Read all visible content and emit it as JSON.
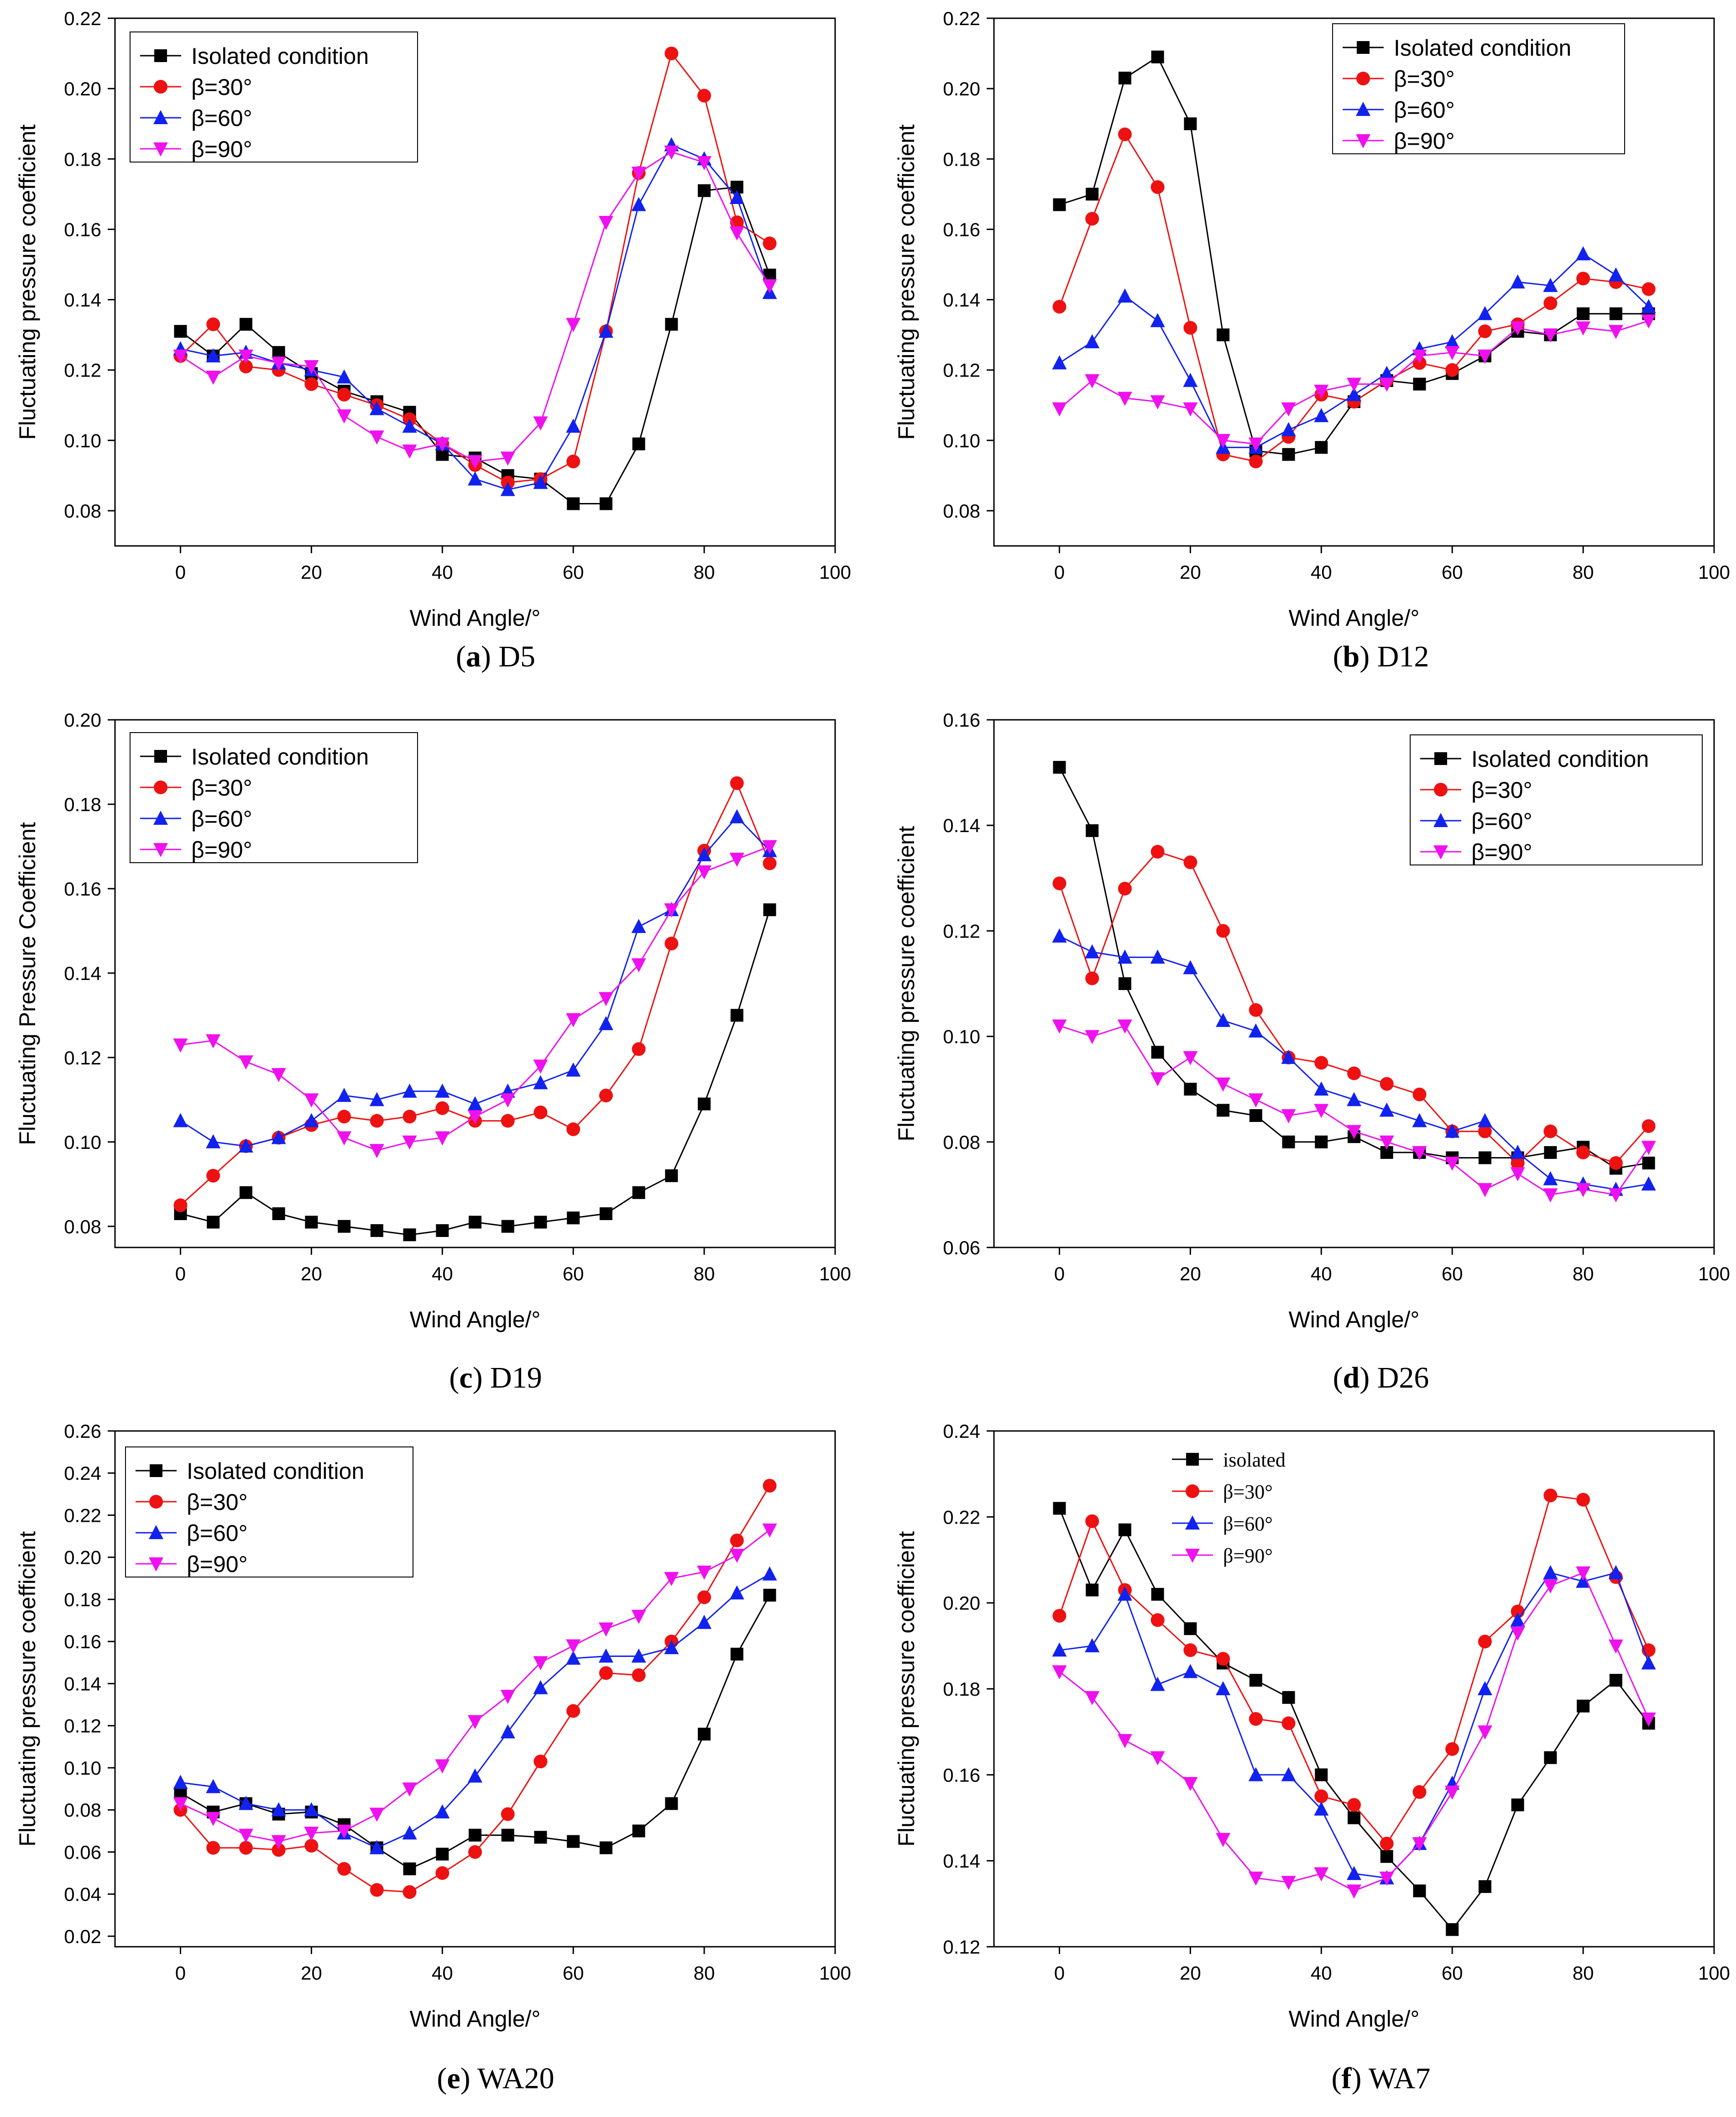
{
  "colors": {
    "isolated": "#000000",
    "b30": "#ee1111",
    "b60": "#1122ee",
    "b90": "#ee11ee"
  },
  "chart_data": [
    {
      "id": "a",
      "type": "line",
      "caption": {
        "letter": "a",
        "rest": ") D5"
      },
      "xlabel": "Wind Angle/°",
      "ylabel": "Fluctuating pressure coefficient",
      "xlim": [
        -10,
        100
      ],
      "xticks": [
        0,
        20,
        40,
        60,
        80,
        100
      ],
      "ylim": [
        0.07,
        0.22
      ],
      "yticks": [
        0.08,
        0.1,
        0.12,
        0.14,
        0.16,
        0.18,
        0.2,
        0.22
      ],
      "ydecimals": 2,
      "legend": "top-left",
      "x": [
        0,
        5,
        10,
        15,
        20,
        25,
        30,
        35,
        40,
        45,
        50,
        55,
        60,
        65,
        70,
        75,
        80,
        85,
        90
      ],
      "series": [
        {
          "name": "Isolated condition",
          "key": "isolated",
          "marker": "square",
          "values": [
            0.131,
            0.124,
            0.133,
            0.125,
            0.119,
            0.114,
            0.111,
            0.108,
            0.096,
            0.095,
            0.09,
            0.089,
            0.082,
            0.082,
            0.099,
            0.133,
            0.171,
            0.172,
            0.147
          ]
        },
        {
          "name": "β=30°",
          "key": "b30",
          "marker": "circle",
          "values": [
            0.124,
            0.133,
            0.121,
            0.12,
            0.116,
            0.113,
            0.11,
            0.106,
            0.099,
            0.093,
            0.088,
            0.089,
            0.094,
            0.131,
            0.176,
            0.21,
            0.198,
            0.162,
            0.156
          ]
        },
        {
          "name": "β=60°",
          "key": "b60",
          "marker": "triangle-up",
          "values": [
            0.126,
            0.124,
            0.125,
            0.122,
            0.12,
            0.118,
            0.109,
            0.104,
            0.099,
            0.089,
            0.086,
            0.088,
            0.104,
            0.131,
            0.167,
            0.184,
            0.18,
            0.169,
            0.142
          ]
        },
        {
          "name": "β=90°",
          "key": "b90",
          "marker": "triangle-down",
          "values": [
            0.124,
            0.118,
            0.124,
            0.122,
            0.121,
            0.107,
            0.101,
            0.097,
            0.099,
            0.094,
            0.095,
            0.105,
            0.133,
            0.162,
            0.176,
            0.182,
            0.179,
            0.159,
            0.144
          ]
        }
      ]
    },
    {
      "id": "b",
      "type": "line",
      "caption": {
        "letter": "b",
        "rest": ") D12"
      },
      "xlabel": "Wind Angle/°",
      "ylabel": "Fluctuating pressure coefficient",
      "xlim": [
        -10,
        100
      ],
      "xticks": [
        0,
        20,
        40,
        60,
        80,
        100
      ],
      "ylim": [
        0.07,
        0.22
      ],
      "yticks": [
        0.08,
        0.1,
        0.12,
        0.14,
        0.16,
        0.18,
        0.2,
        0.22
      ],
      "ydecimals": 2,
      "legend": "top-right",
      "x": [
        0,
        5,
        10,
        15,
        20,
        25,
        30,
        35,
        40,
        45,
        50,
        55,
        60,
        65,
        70,
        75,
        80,
        85,
        90
      ],
      "series": [
        {
          "name": "Isolated condition",
          "key": "isolated",
          "marker": "square",
          "values": [
            0.167,
            0.17,
            0.203,
            0.209,
            0.19,
            0.13,
            0.097,
            0.096,
            0.098,
            0.111,
            0.117,
            0.116,
            0.119,
            0.124,
            0.131,
            0.13,
            0.136,
            0.136,
            0.136
          ]
        },
        {
          "name": "β=30°",
          "key": "b30",
          "marker": "circle",
          "values": [
            0.138,
            0.163,
            0.187,
            0.172,
            0.132,
            0.096,
            0.094,
            0.101,
            0.113,
            0.111,
            0.117,
            0.122,
            0.12,
            0.131,
            0.133,
            0.139,
            0.146,
            0.145,
            0.143
          ]
        },
        {
          "name": "β=60°",
          "key": "b60",
          "marker": "triangle-up",
          "values": [
            0.122,
            0.128,
            0.141,
            0.134,
            0.117,
            0.098,
            0.098,
            0.103,
            0.107,
            0.113,
            0.119,
            0.126,
            0.128,
            0.136,
            0.145,
            0.144,
            0.153,
            0.147,
            0.138
          ]
        },
        {
          "name": "β=90°",
          "key": "b90",
          "marker": "triangle-down",
          "values": [
            0.109,
            0.117,
            0.112,
            0.111,
            0.109,
            0.1,
            0.099,
            0.109,
            0.114,
            0.116,
            0.116,
            0.124,
            0.125,
            0.124,
            0.132,
            0.13,
            0.132,
            0.131,
            0.134
          ]
        }
      ]
    },
    {
      "id": "c",
      "type": "line",
      "caption": {
        "letter": "c",
        "rest": ") D19"
      },
      "xlabel": "Wind Angle/°",
      "ylabel": "Fluctuating Pressure Coefficient",
      "xlim": [
        -10,
        100
      ],
      "xticks": [
        0,
        20,
        40,
        60,
        80,
        100
      ],
      "ylim": [
        0.075,
        0.2
      ],
      "yticks": [
        0.08,
        0.1,
        0.12,
        0.14,
        0.16,
        0.18,
        0.2
      ],
      "ydecimals": 2,
      "legend": "top-left",
      "x": [
        0,
        5,
        10,
        15,
        20,
        25,
        30,
        35,
        40,
        45,
        50,
        55,
        60,
        65,
        70,
        75,
        80,
        85,
        90
      ],
      "series": [
        {
          "name": "Isolated condition",
          "key": "isolated",
          "marker": "square",
          "values": [
            0.083,
            0.081,
            0.088,
            0.083,
            0.081,
            0.08,
            0.079,
            0.078,
            0.079,
            0.081,
            0.08,
            0.081,
            0.082,
            0.083,
            0.088,
            0.092,
            0.109,
            0.13,
            0.155
          ]
        },
        {
          "name": "β=30°",
          "key": "b30",
          "marker": "circle",
          "values": [
            0.085,
            0.092,
            0.099,
            0.101,
            0.104,
            0.106,
            0.105,
            0.106,
            0.108,
            0.105,
            0.105,
            0.107,
            0.103,
            0.111,
            0.122,
            0.147,
            0.169,
            0.185,
            0.166
          ]
        },
        {
          "name": "β=60°",
          "key": "b60",
          "marker": "triangle-up",
          "values": [
            0.105,
            0.1,
            0.099,
            0.101,
            0.105,
            0.111,
            0.11,
            0.112,
            0.112,
            0.109,
            0.112,
            0.114,
            0.117,
            0.128,
            0.151,
            0.155,
            0.168,
            0.177,
            0.169
          ]
        },
        {
          "name": "β=90°",
          "key": "b90",
          "marker": "triangle-down",
          "values": [
            0.123,
            0.124,
            0.119,
            0.116,
            0.11,
            0.101,
            0.098,
            0.1,
            0.101,
            0.106,
            0.11,
            0.118,
            0.129,
            0.134,
            0.142,
            0.155,
            0.164,
            0.167,
            0.17
          ]
        }
      ]
    },
    {
      "id": "d",
      "type": "line",
      "caption": {
        "letter": "d",
        "rest": ") D26"
      },
      "xlabel": "Wind Angle/°",
      "ylabel": "Fluctuating pressure coefficient",
      "xlim": [
        -10,
        100
      ],
      "xticks": [
        0,
        20,
        40,
        60,
        80,
        100
      ],
      "ylim": [
        0.06,
        0.16
      ],
      "yticks": [
        0.06,
        0.08,
        0.1,
        0.12,
        0.14,
        0.16
      ],
      "ydecimals": 2,
      "legend": "top-right",
      "x": [
        0,
        5,
        10,
        15,
        20,
        25,
        30,
        35,
        40,
        45,
        50,
        55,
        60,
        65,
        70,
        75,
        80,
        85,
        90
      ],
      "series": [
        {
          "name": "Isolated condition",
          "key": "isolated",
          "marker": "square",
          "values": [
            0.151,
            0.139,
            0.11,
            0.097,
            0.09,
            0.086,
            0.085,
            0.08,
            0.08,
            0.081,
            0.078,
            0.078,
            0.077,
            0.077,
            0.077,
            0.078,
            0.079,
            0.075,
            0.076
          ]
        },
        {
          "name": "β=30°",
          "key": "b30",
          "marker": "circle",
          "values": [
            0.129,
            0.111,
            0.128,
            0.135,
            0.133,
            0.12,
            0.105,
            0.096,
            0.095,
            0.093,
            0.091,
            0.089,
            0.082,
            0.082,
            0.076,
            0.082,
            0.078,
            0.076,
            0.083
          ]
        },
        {
          "name": "β=60°",
          "key": "b60",
          "marker": "triangle-up",
          "values": [
            0.119,
            0.116,
            0.115,
            0.115,
            0.113,
            0.103,
            0.101,
            0.096,
            0.09,
            0.088,
            0.086,
            0.084,
            0.082,
            0.084,
            0.078,
            0.073,
            0.072,
            0.071,
            0.072
          ]
        },
        {
          "name": "β=90°",
          "key": "b90",
          "marker": "triangle-down",
          "values": [
            0.102,
            0.1,
            0.102,
            0.092,
            0.096,
            0.091,
            0.088,
            0.085,
            0.086,
            0.082,
            0.08,
            0.078,
            0.076,
            0.071,
            0.074,
            0.07,
            0.071,
            0.07,
            0.079
          ]
        }
      ]
    },
    {
      "id": "e",
      "type": "line",
      "caption": {
        "letter": "e",
        "rest": ") WA20"
      },
      "xlabel": "Wind Angle/°",
      "ylabel": "Fluctuating pressure coefficient",
      "xlim": [
        -10,
        100
      ],
      "xticks": [
        0,
        20,
        40,
        60,
        80,
        100
      ],
      "ylim": [
        0.015,
        0.26
      ],
      "yticks": [
        0.02,
        0.04,
        0.06,
        0.08,
        0.1,
        0.12,
        0.14,
        0.16,
        0.18,
        0.2,
        0.22,
        0.24,
        0.26
      ],
      "ydecimals": 2,
      "legend": "top-left",
      "x": [
        0,
        5,
        10,
        15,
        20,
        25,
        30,
        35,
        40,
        45,
        50,
        55,
        60,
        65,
        70,
        75,
        80,
        85,
        90
      ],
      "series": [
        {
          "name": "Isolated condition",
          "key": "isolated",
          "marker": "square",
          "values": [
            0.088,
            0.079,
            0.083,
            0.078,
            0.079,
            0.073,
            0.062,
            0.052,
            0.059,
            0.068,
            0.068,
            0.067,
            0.065,
            0.062,
            0.07,
            0.083,
            0.116,
            0.154,
            0.182
          ]
        },
        {
          "name": "β=30°",
          "key": "b30",
          "marker": "circle",
          "values": [
            0.08,
            0.062,
            0.062,
            0.061,
            0.063,
            0.052,
            0.042,
            0.041,
            0.05,
            0.06,
            0.078,
            0.103,
            0.127,
            0.145,
            0.144,
            0.16,
            0.181,
            0.208,
            0.234
          ]
        },
        {
          "name": "β=60°",
          "key": "b60",
          "marker": "triangle-up",
          "values": [
            0.093,
            0.091,
            0.083,
            0.08,
            0.08,
            0.069,
            0.062,
            0.069,
            0.079,
            0.096,
            0.117,
            0.138,
            0.152,
            0.153,
            0.153,
            0.157,
            0.169,
            0.183,
            0.192
          ]
        },
        {
          "name": "β=90°",
          "key": "b90",
          "marker": "triangle-down",
          "values": [
            0.083,
            0.076,
            0.068,
            0.065,
            0.069,
            0.07,
            0.078,
            0.09,
            0.101,
            0.122,
            0.134,
            0.15,
            0.158,
            0.166,
            0.172,
            0.19,
            0.193,
            0.201,
            0.213
          ]
        }
      ]
    },
    {
      "id": "f",
      "type": "line",
      "caption": {
        "letter": "f",
        "rest": ") WA7"
      },
      "xlabel": "Wind Angle/°",
      "ylabel": "Fluctuating pressure coefficient",
      "xlim": [
        -10,
        100
      ],
      "xticks": [
        0,
        20,
        40,
        60,
        80,
        100
      ],
      "ylim": [
        0.12,
        0.24
      ],
      "yticks": [
        0.12,
        0.14,
        0.16,
        0.18,
        0.2,
        0.22,
        0.24
      ],
      "ydecimals": 2,
      "legend": "top-left-serif",
      "x": [
        0,
        5,
        10,
        15,
        20,
        25,
        30,
        35,
        40,
        45,
        50,
        55,
        60,
        65,
        70,
        75,
        80,
        85,
        90
      ],
      "series": [
        {
          "name": "isolated",
          "key": "isolated",
          "marker": "square",
          "values": [
            0.222,
            0.203,
            0.217,
            0.202,
            0.194,
            0.186,
            0.182,
            0.178,
            0.16,
            0.15,
            0.141,
            0.133,
            0.124,
            0.134,
            0.153,
            0.164,
            0.176,
            0.182,
            0.172
          ]
        },
        {
          "name": "β=30°",
          "key": "b30",
          "marker": "circle",
          "values": [
            0.197,
            0.219,
            0.203,
            0.196,
            0.189,
            0.187,
            0.173,
            0.172,
            0.155,
            0.153,
            0.144,
            0.156,
            0.166,
            0.191,
            0.198,
            0.225,
            0.224,
            0.206,
            0.189
          ]
        },
        {
          "name": "β=60°",
          "key": "b60",
          "marker": "triangle-up",
          "values": [
            0.189,
            0.19,
            0.202,
            0.181,
            0.184,
            0.18,
            0.16,
            0.16,
            0.152,
            0.137,
            0.136,
            0.144,
            0.158,
            0.18,
            0.196,
            0.207,
            0.205,
            0.207,
            0.186
          ]
        },
        {
          "name": "β=90°",
          "key": "b90",
          "marker": "triangle-down",
          "values": [
            0.184,
            0.178,
            0.168,
            0.164,
            0.158,
            0.145,
            0.136,
            0.135,
            0.137,
            0.133,
            0.136,
            0.144,
            0.156,
            0.17,
            0.193,
            0.204,
            0.207,
            0.19,
            0.173
          ]
        }
      ]
    }
  ]
}
